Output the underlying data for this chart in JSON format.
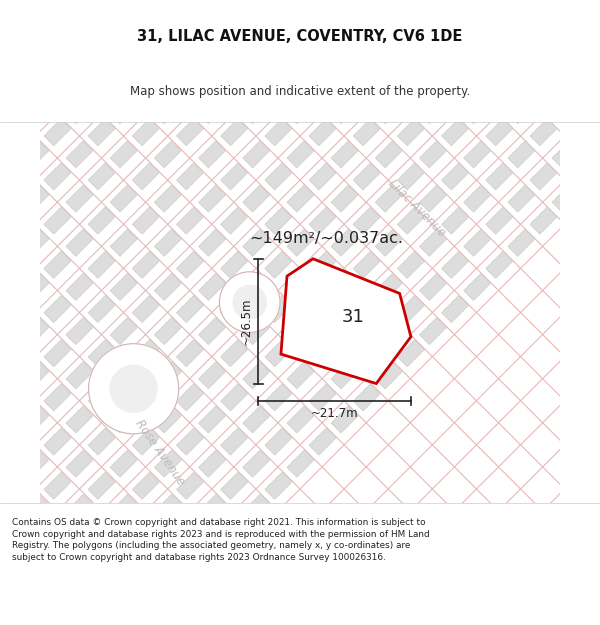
{
  "title": "31, LILAC AVENUE, COVENTRY, CV6 1DE",
  "subtitle": "Map shows position and indicative extent of the property.",
  "area_text": "~149m²/~0.037ac.",
  "number_label": "31",
  "dim_width": "~21.7m",
  "dim_height": "~26.5m",
  "street_lilac": "Lilac Avenue",
  "street_rose": "Rose Avenue",
  "footer": "Contains OS data © Crown copyright and database right 2021. This information is subject to Crown copyright and database rights 2023 and is reproduced with the permission of HM Land Registry. The polygons (including the associated geometry, namely x, y co-ordinates) are subject to Crown copyright and database rights 2023 Ordnance Survey 100026316.",
  "bg_color": "#ffffff",
  "map_bg": "#efefef",
  "plot_color": "#cc0000",
  "plot_fill": "#ffffff",
  "road_line_color": "#e8b8b8",
  "block_color": "#dddddd",
  "block_edge": "#cccccc",
  "dim_line_color": "#222222",
  "text_color": "#222222",
  "street_text_color": "#bbbbbb"
}
